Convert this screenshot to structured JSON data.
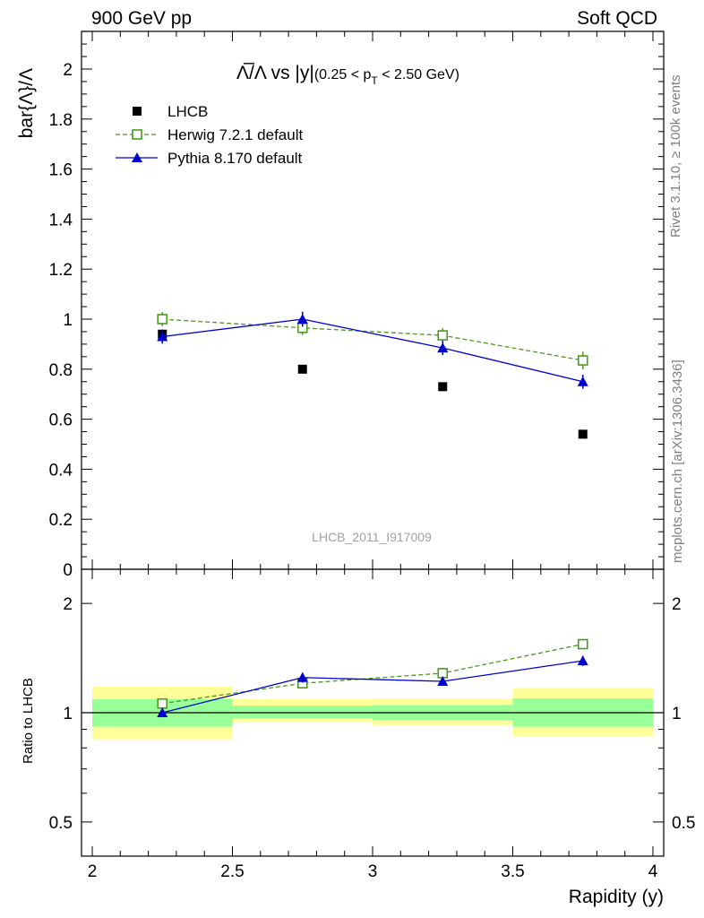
{
  "header": {
    "left": "900 GeV pp",
    "right": "Soft QCD"
  },
  "side_labels": {
    "rivet": "Rivet 3.1.10, ≥ 100k events",
    "mcplots": "mcplots.cern.ch [arXiv:1306.3436]"
  },
  "chart_data": [
    {
      "type": "scatter",
      "title": {
        "main": "Λ̅/Λ vs |y|",
        "sub": "(0.25 < p",
        "sub_index": "T",
        "sub_tail": " < 2.50 GeV)"
      },
      "ylabel": "bar{Λ}/Λ",
      "xlim": [
        2,
        4
      ],
      "ylim": [
        0,
        2.15
      ],
      "yticks": [
        "0",
        "0.2",
        "0.4",
        "0.6",
        "0.8",
        "1",
        "1.2",
        "1.4",
        "1.6",
        "1.8",
        "2"
      ],
      "watermark": "LHCB_2011_I917009",
      "legend_position": "top-left",
      "x": [
        2.25,
        2.75,
        3.25,
        3.75
      ],
      "series": [
        {
          "name": "LHCB",
          "color": "#000000",
          "marker": "filled-square",
          "values": [
            0.94,
            0.8,
            0.73,
            0.54
          ],
          "errors": [
            0.0,
            0.0,
            0.0,
            0.0
          ]
        },
        {
          "name": "Herwig 7.2.1 default",
          "color": "#4a9a1e",
          "marker": "open-square",
          "line": "dashed",
          "values": [
            1.0,
            0.965,
            0.935,
            0.835
          ],
          "errors": [
            0.028,
            0.028,
            0.028,
            0.035
          ]
        },
        {
          "name": "Pythia 8.170 default",
          "color": "#0000cc",
          "marker": "filled-triangle",
          "line": "solid",
          "values": [
            0.93,
            1.0,
            0.885,
            0.75
          ],
          "errors": [
            0.028,
            0.03,
            0.028,
            0.028
          ]
        }
      ]
    },
    {
      "type": "scatter",
      "ylabel": "Ratio to LHCB",
      "xlabel": "Rapidity (y)",
      "xlim": [
        2,
        4
      ],
      "ylim": [
        0.4,
        2.3
      ],
      "log_y": true,
      "xticks": [
        "2",
        "2.5",
        "3",
        "3.5",
        "4"
      ],
      "yticks": [
        "0.5",
        "1",
        "2"
      ],
      "x": [
        2.25,
        2.75,
        3.25,
        3.75
      ],
      "bands": {
        "edges": [
          2.0,
          2.5,
          3.0,
          3.5,
          4.0
        ],
        "inner_color": "#99ff99",
        "outer_color": "#ffff99",
        "inner": [
          [
            0.915,
            1.09
          ],
          [
            0.965,
            1.045
          ],
          [
            0.955,
            1.05
          ],
          [
            0.915,
            1.095
          ]
        ],
        "outer": [
          [
            0.845,
            1.18
          ],
          [
            0.94,
            1.09
          ],
          [
            0.925,
            1.095
          ],
          [
            0.86,
            1.17
          ]
        ]
      },
      "series": [
        {
          "name": "Herwig 7.2.1 default",
          "color": "#4a9a1e",
          "marker": "open-square",
          "line": "dashed",
          "values": [
            1.06,
            1.205,
            1.285,
            1.545
          ],
          "errors": [
            0.03,
            0.035,
            0.035,
            0.045
          ]
        },
        {
          "name": "Pythia 8.170 default",
          "color": "#0000cc",
          "marker": "filled-triangle",
          "line": "solid",
          "values": [
            1.0,
            1.25,
            1.22,
            1.39
          ],
          "errors": [
            0.025,
            0.04,
            0.035,
            0.045
          ]
        }
      ]
    }
  ]
}
